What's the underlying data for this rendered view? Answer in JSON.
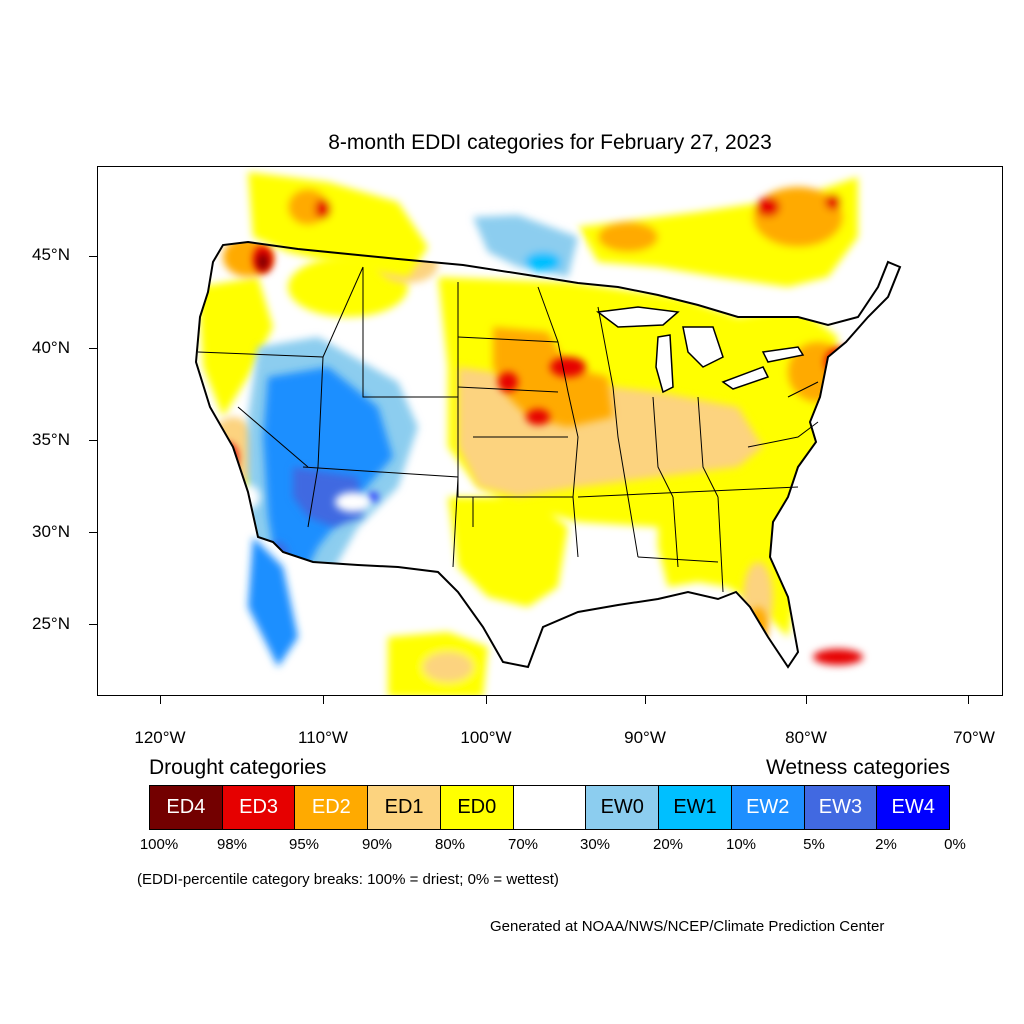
{
  "title": "8-month EDDI categories for February 27, 2023",
  "map": {
    "lat_ticks": [
      "45°N",
      "40°N",
      "35°N",
      "30°N",
      "25°N"
    ],
    "lon_ticks": [
      "120°W",
      "110°W",
      "100°W",
      "90°W",
      "80°W",
      "70°W"
    ],
    "region": "Contiguous United States"
  },
  "legend": {
    "drought_title": "Drought categories",
    "wetness_title": "Wetness categories",
    "categories": [
      {
        "label": "ED4",
        "color": "#730000",
        "text_color": "#ffffff"
      },
      {
        "label": "ED3",
        "color": "#e60000",
        "text_color": "#ffffff"
      },
      {
        "label": "ED2",
        "color": "#ffaa00",
        "text_color": "#ffffff"
      },
      {
        "label": "ED1",
        "color": "#fcd37f",
        "text_color": "#000000"
      },
      {
        "label": "ED0",
        "color": "#ffff00",
        "text_color": "#000000"
      },
      {
        "label": "",
        "color": "#ffffff",
        "text_color": "#000000"
      },
      {
        "label": "EW0",
        "color": "#8ccdef",
        "text_color": "#000000"
      },
      {
        "label": "EW1",
        "color": "#00bfff",
        "text_color": "#000000"
      },
      {
        "label": "EW2",
        "color": "#1e8fff",
        "text_color": "#ffffff"
      },
      {
        "label": "EW3",
        "color": "#4169e1",
        "text_color": "#ffffff"
      },
      {
        "label": "EW4",
        "color": "#0000ff",
        "text_color": "#ffffff"
      }
    ],
    "breaks": [
      "100%",
      "98%",
      "95%",
      "90%",
      "80%",
      "70%",
      "30%",
      "20%",
      "10%",
      "5%",
      "2%",
      "0%"
    ]
  },
  "note": "(EDDI-percentile category breaks: 100% = driest; 0% = wettest)",
  "credit": "Generated at NOAA/NWS/NCEP/Climate Prediction Center"
}
